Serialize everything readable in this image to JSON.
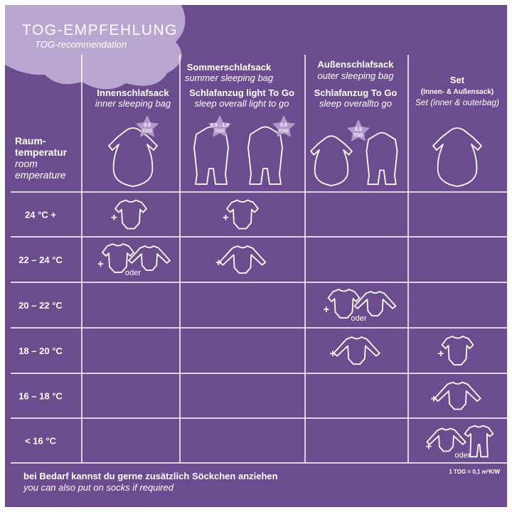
{
  "header": {
    "title": "TOG-EMPFEHLUNG",
    "subtitle": "TOG-recommendation"
  },
  "columns": [
    {
      "id": "inner",
      "group_de": "",
      "group_en": "",
      "title_de": "Innenschlafsack",
      "title_en": "inner sleeping bag",
      "tog_badges": [
        "0.5 TOG"
      ]
    },
    {
      "id": "summer",
      "group_de": "Sommerschlafsack",
      "group_en": "summer sleeping bag",
      "title_de": "Schlafanzug light To Go",
      "title_en": "sleep overall light to go",
      "tog_badges": [
        "0.5 - 1.0 TOG",
        "0.5 TOG"
      ]
    },
    {
      "id": "outer",
      "group_de": "Außenschlafsack",
      "group_en": "outer sleeping bag",
      "title_de": "Schlafanzug To Go",
      "title_en": "sleep overallto go",
      "tog_badges": [
        "2.5 TOG"
      ]
    },
    {
      "id": "set",
      "group_de": "",
      "group_en": "",
      "title_de": "Set",
      "title_de_sub": "(Innen- & Außensack)",
      "title_en": "Set (inner & outerbag)",
      "tog_badges": []
    }
  ],
  "row_header": {
    "de_line1": "Raum-",
    "de_line2": "temperatur",
    "en_line1": "room",
    "en_line2": "emperature"
  },
  "rows": [
    {
      "label": "24 °C +",
      "cells": [
        "short-body",
        "short-body",
        "",
        ""
      ]
    },
    {
      "label": "22 – 24 °C",
      "cells": [
        "short-or-long-body",
        "long-body",
        "",
        ""
      ]
    },
    {
      "label": "20 – 22 °C",
      "cells": [
        "",
        "",
        "short-or-long-body",
        ""
      ]
    },
    {
      "label": "18 – 20 °C",
      "cells": [
        "",
        "",
        "long-body",
        "short-body"
      ]
    },
    {
      "label": "16 – 18 °C",
      "cells": [
        "",
        "",
        "",
        "long-body"
      ]
    },
    {
      "label": "< 16 °C",
      "cells": [
        "",
        "",
        "",
        "long-body-or-pajama"
      ]
    }
  ],
  "symbols": {
    "plus": "+",
    "or": "oder"
  },
  "footer": {
    "note_de": "bei Bedarf kannst du gerne zusätzlich Söckchen anziehen",
    "note_en": "you can also put on socks if required",
    "unit": "1 TOG = 0,1 m²K/W"
  },
  "colors": {
    "background": "#6b4c8e",
    "cloud": "#b9a6d1",
    "badge": "#b09bcc",
    "lines": "#ffffff",
    "text": "#ffffff"
  },
  "icons": {
    "sleeping-bag-sleeves": "sleeping-bag-icon",
    "sleep-overall": "sleep-overall-icon",
    "short-sleeve-body": "short-sleeve-body-icon",
    "long-sleeve-body": "long-sleeve-body-icon",
    "pajama": "pajama-icon",
    "tog-star": "star-icon"
  }
}
